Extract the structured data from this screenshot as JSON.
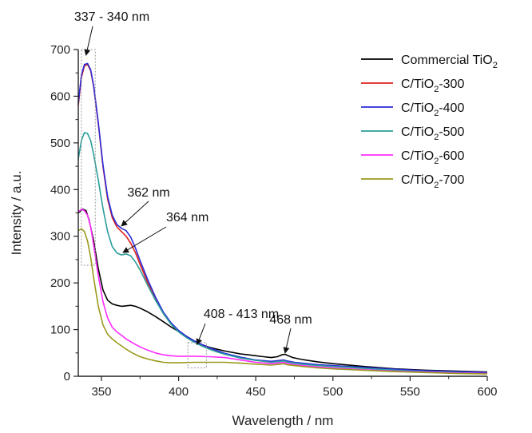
{
  "chart_data": {
    "type": "line",
    "title": "",
    "xlabel": "Wavelength / nm",
    "ylabel": "Intensity / a.u.",
    "xlim": [
      335,
      600
    ],
    "ylim": [
      0,
      700
    ],
    "x_ticks": [
      350,
      400,
      450,
      500,
      550,
      600
    ],
    "y_ticks": [
      0,
      100,
      200,
      300,
      400,
      500,
      600,
      700
    ],
    "grid": false,
    "legend_position": "top-right",
    "series": [
      {
        "name": "Commercial TiO",
        "name_sub": "2",
        "name_suffix": "",
        "color": "#000000",
        "points": [
          [
            335,
            350
          ],
          [
            338,
            358
          ],
          [
            340,
            355
          ],
          [
            342,
            335
          ],
          [
            345,
            290
          ],
          [
            348,
            230
          ],
          [
            351,
            185
          ],
          [
            354,
            163
          ],
          [
            357,
            155
          ],
          [
            360,
            152
          ],
          [
            363,
            150
          ],
          [
            366,
            151
          ],
          [
            369,
            152
          ],
          [
            372,
            150
          ],
          [
            375,
            146
          ],
          [
            380,
            138
          ],
          [
            385,
            128
          ],
          [
            390,
            117
          ],
          [
            395,
            106
          ],
          [
            400,
            96
          ],
          [
            405,
            86
          ],
          [
            410,
            76
          ],
          [
            415,
            68
          ],
          [
            420,
            62
          ],
          [
            425,
            58
          ],
          [
            430,
            54
          ],
          [
            435,
            51
          ],
          [
            440,
            48
          ],
          [
            445,
            46
          ],
          [
            450,
            44
          ],
          [
            455,
            42
          ],
          [
            460,
            40
          ],
          [
            464,
            42
          ],
          [
            467,
            46
          ],
          [
            469,
            47
          ],
          [
            471,
            44
          ],
          [
            474,
            40
          ],
          [
            480,
            36
          ],
          [
            490,
            31
          ],
          [
            500,
            27
          ],
          [
            520,
            21
          ],
          [
            540,
            16
          ],
          [
            560,
            13
          ],
          [
            580,
            11
          ],
          [
            600,
            9
          ]
        ]
      },
      {
        "name": "C/TiO",
        "name_sub": "2",
        "name_suffix": "-300",
        "color": "#e0201b",
        "points": [
          [
            335,
            580
          ],
          [
            337,
            640
          ],
          [
            339,
            665
          ],
          [
            341,
            668
          ],
          [
            343,
            655
          ],
          [
            345,
            620
          ],
          [
            348,
            540
          ],
          [
            351,
            450
          ],
          [
            354,
            380
          ],
          [
            357,
            340
          ],
          [
            360,
            320
          ],
          [
            363,
            310
          ],
          [
            366,
            300
          ],
          [
            369,
            285
          ],
          [
            372,
            265
          ],
          [
            375,
            240
          ],
          [
            380,
            200
          ],
          [
            385,
            165
          ],
          [
            390,
            135
          ],
          [
            395,
            113
          ],
          [
            400,
            97
          ],
          [
            405,
            85
          ],
          [
            410,
            75
          ],
          [
            415,
            67
          ],
          [
            420,
            60
          ],
          [
            425,
            54
          ],
          [
            430,
            48
          ],
          [
            440,
            40
          ],
          [
            450,
            34
          ],
          [
            460,
            31
          ],
          [
            466,
            33
          ],
          [
            468,
            34
          ],
          [
            470,
            32
          ],
          [
            475,
            29
          ],
          [
            480,
            27
          ],
          [
            490,
            24
          ],
          [
            500,
            22
          ],
          [
            520,
            18
          ],
          [
            540,
            14
          ],
          [
            560,
            11
          ],
          [
            580,
            9
          ],
          [
            600,
            7
          ]
        ]
      },
      {
        "name": "C/TiO",
        "name_sub": "2",
        "name_suffix": "-400",
        "color": "#2b2bd9",
        "points": [
          [
            335,
            585
          ],
          [
            337,
            645
          ],
          [
            339,
            668
          ],
          [
            341,
            670
          ],
          [
            343,
            657
          ],
          [
            345,
            622
          ],
          [
            348,
            543
          ],
          [
            351,
            453
          ],
          [
            354,
            385
          ],
          [
            357,
            345
          ],
          [
            360,
            325
          ],
          [
            363,
            317
          ],
          [
            366,
            312
          ],
          [
            369,
            298
          ],
          [
            372,
            275
          ],
          [
            375,
            248
          ],
          [
            380,
            207
          ],
          [
            385,
            170
          ],
          [
            390,
            138
          ],
          [
            395,
            115
          ],
          [
            400,
            98
          ],
          [
            405,
            86
          ],
          [
            410,
            76
          ],
          [
            415,
            68
          ],
          [
            420,
            61
          ],
          [
            425,
            55
          ],
          [
            430,
            49
          ],
          [
            440,
            41
          ],
          [
            450,
            35
          ],
          [
            460,
            32
          ],
          [
            466,
            34
          ],
          [
            468,
            35
          ],
          [
            470,
            33
          ],
          [
            475,
            30
          ],
          [
            480,
            28
          ],
          [
            490,
            25
          ],
          [
            500,
            23
          ],
          [
            520,
            19
          ],
          [
            540,
            15
          ],
          [
            560,
            12
          ],
          [
            580,
            10
          ],
          [
            600,
            8
          ]
        ]
      },
      {
        "name": "C/TiO",
        "name_sub": "2",
        "name_suffix": "-500",
        "color": "#2a9d9a",
        "points": [
          [
            335,
            465
          ],
          [
            337,
            505
          ],
          [
            339,
            522
          ],
          [
            341,
            520
          ],
          [
            343,
            505
          ],
          [
            345,
            475
          ],
          [
            348,
            420
          ],
          [
            351,
            360
          ],
          [
            354,
            310
          ],
          [
            357,
            278
          ],
          [
            360,
            264
          ],
          [
            363,
            260
          ],
          [
            366,
            262
          ],
          [
            369,
            258
          ],
          [
            372,
            245
          ],
          [
            375,
            228
          ],
          [
            380,
            195
          ],
          [
            385,
            163
          ],
          [
            390,
            135
          ],
          [
            395,
            112
          ],
          [
            400,
            95
          ],
          [
            405,
            83
          ],
          [
            410,
            73
          ],
          [
            415,
            65
          ],
          [
            420,
            58
          ],
          [
            425,
            52
          ],
          [
            430,
            47
          ],
          [
            440,
            39
          ],
          [
            450,
            34
          ],
          [
            460,
            30
          ],
          [
            466,
            32
          ],
          [
            468,
            33
          ],
          [
            470,
            31
          ],
          [
            475,
            28
          ],
          [
            480,
            26
          ],
          [
            490,
            23
          ],
          [
            500,
            21
          ],
          [
            520,
            17
          ],
          [
            540,
            13
          ],
          [
            560,
            10
          ],
          [
            580,
            8
          ],
          [
            600,
            6
          ]
        ]
      },
      {
        "name": "C/TiO",
        "name_sub": "2",
        "name_suffix": "-600",
        "color": "#ff2bff",
        "points": [
          [
            335,
            352
          ],
          [
            337,
            358
          ],
          [
            339,
            355
          ],
          [
            341,
            345
          ],
          [
            343,
            320
          ],
          [
            345,
            280
          ],
          [
            348,
            215
          ],
          [
            351,
            160
          ],
          [
            354,
            125
          ],
          [
            357,
            105
          ],
          [
            360,
            95
          ],
          [
            363,
            88
          ],
          [
            366,
            80
          ],
          [
            370,
            72
          ],
          [
            375,
            63
          ],
          [
            380,
            56
          ],
          [
            385,
            50
          ],
          [
            390,
            46
          ],
          [
            395,
            44
          ],
          [
            400,
            43
          ],
          [
            410,
            43
          ],
          [
            420,
            42
          ],
          [
            430,
            40
          ],
          [
            440,
            35
          ],
          [
            450,
            30
          ],
          [
            460,
            27
          ],
          [
            466,
            29
          ],
          [
            468,
            30
          ],
          [
            470,
            28
          ],
          [
            475,
            25
          ],
          [
            480,
            23
          ],
          [
            490,
            20
          ],
          [
            500,
            18
          ],
          [
            520,
            14
          ],
          [
            540,
            11
          ],
          [
            560,
            9
          ],
          [
            580,
            7
          ],
          [
            600,
            6
          ]
        ]
      },
      {
        "name": "C/TiO",
        "name_sub": "2",
        "name_suffix": "-700",
        "color": "#9a9a1c",
        "points": [
          [
            335,
            312
          ],
          [
            337,
            316
          ],
          [
            339,
            310
          ],
          [
            341,
            290
          ],
          [
            343,
            255
          ],
          [
            345,
            210
          ],
          [
            348,
            150
          ],
          [
            351,
            110
          ],
          [
            354,
            90
          ],
          [
            357,
            80
          ],
          [
            360,
            72
          ],
          [
            363,
            65
          ],
          [
            366,
            58
          ],
          [
            370,
            50
          ],
          [
            375,
            42
          ],
          [
            380,
            37
          ],
          [
            385,
            33
          ],
          [
            390,
            30
          ],
          [
            395,
            29
          ],
          [
            400,
            29
          ],
          [
            410,
            30
          ],
          [
            420,
            30
          ],
          [
            430,
            30
          ],
          [
            440,
            28
          ],
          [
            450,
            26
          ],
          [
            460,
            24
          ],
          [
            466,
            26
          ],
          [
            468,
            27
          ],
          [
            470,
            25
          ],
          [
            475,
            23
          ],
          [
            480,
            21
          ],
          [
            490,
            18
          ],
          [
            500,
            16
          ],
          [
            520,
            13
          ],
          [
            540,
            10
          ],
          [
            560,
            8
          ],
          [
            580,
            6
          ],
          [
            600,
            5
          ]
        ]
      }
    ],
    "annotations": [
      {
        "text": "337 - 340 nm",
        "x": 340,
        "y": 670
      },
      {
        "text": "362 nm",
        "x": 363,
        "y": 317
      },
      {
        "text": "364 nm",
        "x": 364,
        "y": 262
      },
      {
        "text": "408 - 413 nm",
        "x": 412,
        "y": 60
      },
      {
        "text": "468 nm",
        "x": 469,
        "y": 47
      }
    ],
    "dotted_boxes": [
      {
        "x0": 337,
        "x1": 346,
        "y0": 238,
        "y1": 700
      },
      {
        "x0": 406,
        "x1": 418,
        "y0": 18,
        "y1": 72
      }
    ]
  }
}
